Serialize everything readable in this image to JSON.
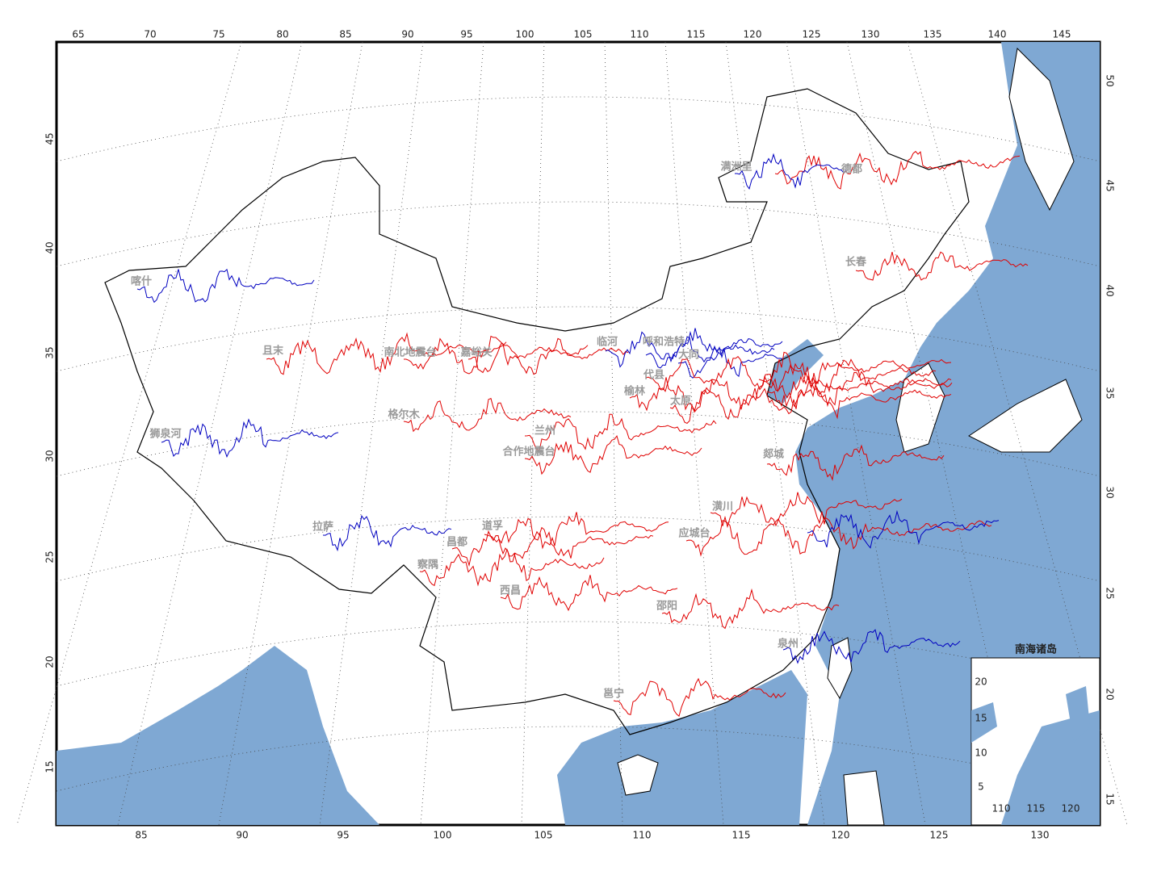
{
  "map": {
    "top_axis_labels": [
      "65",
      "70",
      "75",
      "80",
      "85",
      "90",
      "95",
      "100",
      "105",
      "110",
      "115",
      "120",
      "125",
      "130",
      "135",
      "140",
      "145"
    ],
    "bottom_axis_labels": [
      "85",
      "90",
      "95",
      "100",
      "105",
      "110",
      "115",
      "120",
      "125",
      "130"
    ],
    "left_axis_labels": [
      "15",
      "20",
      "25",
      "30",
      "35",
      "40",
      "45"
    ],
    "right_axis_labels": [
      "15",
      "20",
      "25",
      "30",
      "35",
      "40",
      "45",
      "50"
    ],
    "stations": [
      "喀什",
      "且末",
      "南北地震台",
      "嘉峪关",
      "临河",
      "呼和浩特",
      "大同",
      "代县",
      "榆林",
      "太原",
      "格尔木",
      "兰州",
      "狮泉河",
      "合作地震台",
      "郯城",
      "潢川",
      "拉萨",
      "道孚",
      "应城台",
      "昌都",
      "察隅",
      "西昌",
      "邵阳",
      "泉州",
      "邕宁",
      "德都",
      "满洲里",
      "长春"
    ],
    "inset": {
      "title": "南海诸岛",
      "left_labels": [
        "20",
        "15",
        "10",
        "5"
      ],
      "bottom_labels": [
        "110",
        "115",
        "120"
      ]
    }
  }
}
